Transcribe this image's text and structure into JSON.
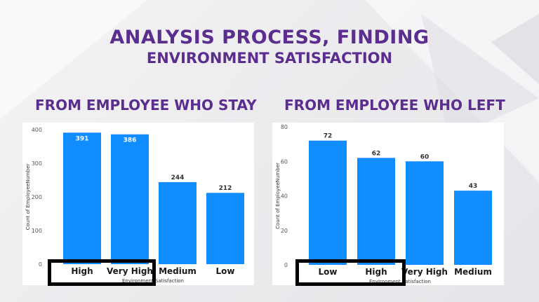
{
  "page": {
    "title": "ANALYSIS PROCESS, FINDING",
    "subtitle": "ENVIRONMENT SATISFACTION"
  },
  "colors": {
    "accent": "#5b2d8e",
    "bar": "#118dff",
    "highlight": "#000000"
  },
  "chart_data": [
    {
      "type": "bar",
      "title": "FROM EMPLOYEE WHO STAY",
      "categories": [
        "High",
        "Very High",
        "Medium",
        "Low"
      ],
      "values": [
        391,
        386,
        244,
        212
      ],
      "ylabel": "Count of EmployeeNumber",
      "xlabel": "Environment Satisfaction",
      "ylim": [
        0,
        400
      ],
      "yticks": [
        0,
        100,
        200,
        300,
        400
      ],
      "grid": false,
      "legend": "none",
      "highlighted_categories": [
        "High",
        "Very High"
      ]
    },
    {
      "type": "bar",
      "title": "FROM EMPLOYEE WHO LEFT",
      "categories": [
        "Low",
        "High",
        "Very High",
        "Medium"
      ],
      "values": [
        72,
        62,
        60,
        43
      ],
      "ylabel": "Count of EmployeeNumber",
      "xlabel": "Environment Satisfaction",
      "ylim": [
        0,
        80
      ],
      "yticks": [
        0,
        20,
        40,
        60,
        80
      ],
      "grid": false,
      "legend": "none",
      "highlighted_categories": [
        "Low",
        "High"
      ]
    }
  ]
}
